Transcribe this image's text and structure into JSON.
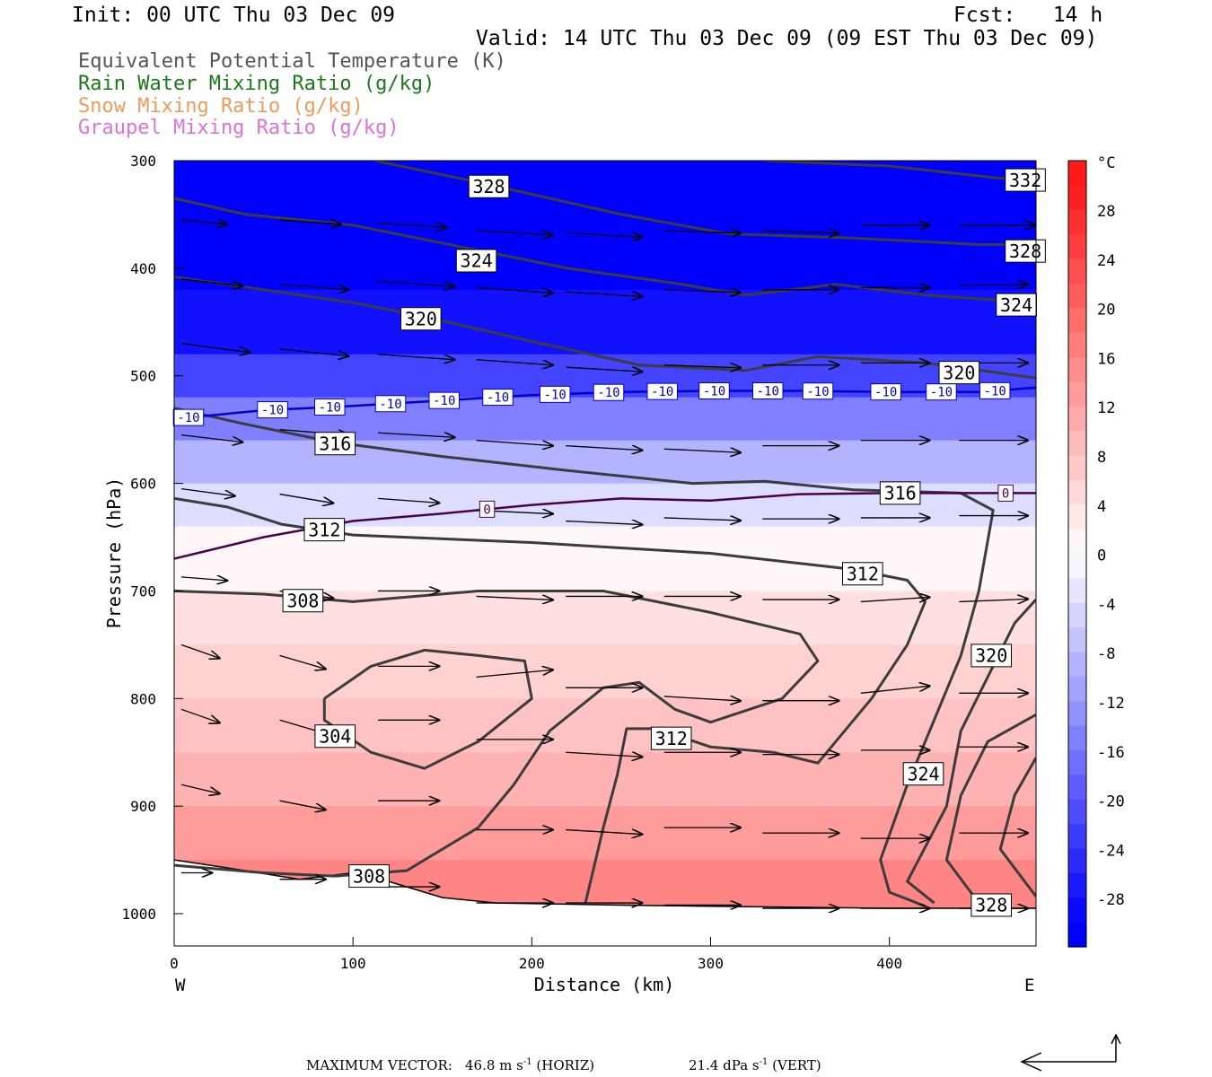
{
  "header": {
    "init": "Init: 00 UTC Thu 03 Dec 09",
    "fcst": "Fcst:   14 h",
    "valid": "Valid: 14 UTC Thu 03 Dec 09 (09 EST Thu 03 Dec 09)"
  },
  "fields": [
    {
      "label": "Equivalent Potential Temperature (K)",
      "color": "#555555"
    },
    {
      "label": "Rain Water Mixing Ratio (g/kg)",
      "color": "#1a7a1a"
    },
    {
      "label": "Snow Mixing Ratio (g/kg)",
      "color": "#f09a5a"
    },
    {
      "label": "Graupel Mixing Ratio (g/kg)",
      "color": "#e070e0"
    }
  ],
  "footer": {
    "max_vector_label": "MAXIMUM VECTOR:",
    "horiz": "46.8 m s",
    "horiz_sup": "-1",
    "horiz_tag": "(HORIZ)",
    "vert": "21.4 dPa s",
    "vert_sup": "-1",
    "vert_tag": "(VERT)"
  },
  "chart_data": {
    "type": "contour-cross-section",
    "xlabel": "Distance (km)",
    "ylabel": "Pressure (hPa)",
    "xlim": [
      0,
      482
    ],
    "ylim": [
      1030,
      300
    ],
    "x_ticks": [
      0,
      100,
      200,
      300,
      400
    ],
    "y_ticks": [
      300,
      400,
      500,
      600,
      700,
      800,
      900,
      1000
    ],
    "x_end_labels": {
      "left": "W",
      "right": "E"
    },
    "colorbar": {
      "unit": "°C",
      "tick_labels": [
        "28",
        "24",
        "20",
        "16",
        "12",
        "8",
        "4",
        "0",
        "-4",
        "-8",
        "-12",
        "-16",
        "-20",
        "-24",
        "-28"
      ],
      "warm_color": "#ff1a1a",
      "cold_color": "#0000ff"
    },
    "temperature_fill_rows": [
      {
        "p": 300,
        "t": -40
      },
      {
        "p": 360,
        "t": -34
      },
      {
        "p": 420,
        "t": -28
      },
      {
        "p": 480,
        "t": -22
      },
      {
        "p": 520,
        "t": -15
      },
      {
        "p": 560,
        "t": -9
      },
      {
        "p": 600,
        "t": -4
      },
      {
        "p": 640,
        "t": 1
      },
      {
        "p": 700,
        "t": 4
      },
      {
        "p": 750,
        "t": 6
      },
      {
        "p": 800,
        "t": 8
      },
      {
        "p": 850,
        "t": 10
      },
      {
        "p": 900,
        "t": 13
      },
      {
        "p": 950,
        "t": 16
      },
      {
        "p": 1000,
        "t": 18
      }
    ],
    "theta_e_contours": [
      {
        "label": "332",
        "points": [
          [
            330,
            300
          ],
          [
            400,
            305
          ],
          [
            482,
            320
          ]
        ],
        "label_at": [
          476,
          318
        ]
      },
      {
        "label": "328",
        "points": [
          [
            112,
            300
          ],
          [
            170,
            320
          ],
          [
            250,
            350
          ],
          [
            310,
            368
          ],
          [
            380,
            372
          ],
          [
            450,
            378
          ],
          [
            482,
            378
          ]
        ],
        "label_at": [
          176,
          324
        ],
        "label2_at": [
          476,
          384
        ]
      },
      {
        "label": "324",
        "points": [
          [
            0,
            335
          ],
          [
            40,
            350
          ],
          [
            100,
            360
          ],
          [
            160,
            380
          ],
          [
            220,
            400
          ],
          [
            280,
            414
          ],
          [
            320,
            425
          ],
          [
            370,
            415
          ],
          [
            420,
            425
          ],
          [
            482,
            432
          ]
        ],
        "label_at": [
          169,
          393
        ],
        "label2_at": [
          471,
          434
        ]
      },
      {
        "label": "320",
        "points": [
          [
            0,
            408
          ],
          [
            50,
            420
          ],
          [
            100,
            432
          ],
          [
            140,
            445
          ],
          [
            200,
            468
          ],
          [
            260,
            490
          ],
          [
            320,
            495
          ],
          [
            360,
            482
          ],
          [
            420,
            488
          ],
          [
            482,
            502
          ]
        ],
        "label_at": [
          138,
          447
        ],
        "label2_at": [
          439,
          497
        ]
      },
      {
        "label": "316",
        "points": [
          [
            0,
            530
          ],
          [
            40,
            545
          ],
          [
            90,
            562
          ],
          [
            150,
            575
          ],
          [
            220,
            588
          ],
          [
            290,
            600
          ],
          [
            330,
            598
          ],
          [
            380,
            606
          ],
          [
            440,
            609
          ],
          [
            458,
            625
          ],
          [
            450,
            700
          ],
          [
            440,
            760
          ],
          [
            425,
            820
          ],
          [
            410,
            880
          ],
          [
            395,
            950
          ],
          [
            400,
            980
          ],
          [
            420,
            993
          ]
        ],
        "label_at": [
          90,
          563
        ],
        "label2_at": [
          406,
          609
        ]
      },
      {
        "label": "312",
        "points": [
          [
            0,
            614
          ],
          [
            30,
            622
          ],
          [
            60,
            638
          ],
          [
            100,
            648
          ],
          [
            200,
            655
          ],
          [
            300,
            665
          ],
          [
            380,
            680
          ],
          [
            410,
            690
          ],
          [
            420,
            710
          ],
          [
            410,
            750
          ],
          [
            390,
            800
          ],
          [
            360,
            860
          ],
          [
            335,
            850
          ],
          [
            300,
            845
          ],
          [
            270,
            828
          ],
          [
            253,
            828
          ],
          [
            248,
            870
          ],
          [
            240,
            920
          ],
          [
            230,
            990
          ]
        ],
        "label_at": [
          84,
          643
        ],
        "label2_at": [
          385,
          684
        ],
        "label3_at": [
          278,
          837
        ]
      },
      {
        "label": "308",
        "points": [
          [
            0,
            700
          ],
          [
            50,
            703
          ],
          [
            100,
            710
          ],
          [
            170,
            700
          ],
          [
            240,
            700
          ],
          [
            300,
            720
          ],
          [
            350,
            740
          ],
          [
            360,
            765
          ],
          [
            340,
            800
          ],
          [
            300,
            822
          ],
          [
            280,
            810
          ],
          [
            260,
            785
          ],
          [
            240,
            790
          ],
          [
            210,
            830
          ],
          [
            190,
            880
          ],
          [
            170,
            920
          ],
          [
            130,
            960
          ],
          [
            90,
            965
          ],
          [
            50,
            962
          ],
          [
            0,
            955
          ]
        ],
        "label_at": [
          72,
          709
        ],
        "label2_at": [
          109,
          965
        ]
      },
      {
        "label": "304",
        "points": [
          [
            84,
            800
          ],
          [
            110,
            770
          ],
          [
            140,
            755
          ],
          [
            170,
            760
          ],
          [
            196,
            765
          ],
          [
            200,
            800
          ],
          [
            170,
            840
          ],
          [
            140,
            865
          ],
          [
            110,
            850
          ],
          [
            84,
            820
          ],
          [
            84,
            800
          ]
        ],
        "label_at": [
          90,
          835
        ]
      },
      {
        "label": "320",
        "points": [
          [
            482,
            708
          ],
          [
            470,
            730
          ],
          [
            455,
            780
          ],
          [
            440,
            830
          ],
          [
            432,
            900
          ],
          [
            410,
            970
          ],
          [
            425,
            990
          ]
        ],
        "label_at": [
          457,
          760
        ]
      },
      {
        "label": "324",
        "points": [
          [
            482,
            815
          ],
          [
            455,
            840
          ],
          [
            440,
            890
          ],
          [
            432,
            950
          ],
          [
            450,
            990
          ]
        ],
        "label_at": [
          419,
          870
        ]
      },
      {
        "label": "328",
        "points": [
          [
            482,
            855
          ],
          [
            470,
            890
          ],
          [
            462,
            940
          ],
          [
            482,
            984
          ]
        ],
        "label_at": [
          457,
          992
        ]
      }
    ],
    "isotherms": [
      {
        "label": "-10",
        "color": "#0000cc",
        "points": [
          [
            0,
            540
          ],
          [
            50,
            532
          ],
          [
            100,
            528
          ],
          [
            150,
            523
          ],
          [
            200,
            518
          ],
          [
            250,
            515
          ],
          [
            300,
            514
          ],
          [
            350,
            514
          ],
          [
            400,
            515
          ],
          [
            450,
            515
          ],
          [
            482,
            511
          ]
        ],
        "label_x": [
          8,
          55,
          87,
          121,
          151,
          181,
          213,
          243,
          273,
          302,
          332,
          360,
          398,
          429,
          459
        ]
      },
      {
        "label": "0",
        "color": "#4a004a",
        "points": [
          [
            0,
            670
          ],
          [
            50,
            650
          ],
          [
            100,
            635
          ],
          [
            150,
            628
          ],
          [
            200,
            620
          ],
          [
            250,
            614
          ],
          [
            300,
            616
          ],
          [
            350,
            610
          ],
          [
            400,
            609
          ],
          [
            482,
            609
          ]
        ],
        "label_x": [
          175,
          465
        ]
      }
    ],
    "surface_pressure": [
      [
        0,
        950
      ],
      [
        40,
        960
      ],
      [
        70,
        968
      ],
      [
        100,
        962
      ],
      [
        120,
        970
      ],
      [
        150,
        985
      ],
      [
        180,
        990
      ],
      [
        250,
        992
      ],
      [
        300,
        993
      ],
      [
        400,
        995
      ],
      [
        482,
        995
      ]
    ],
    "wind_vectors": [
      [
        0,
        355,
        30,
        5
      ],
      [
        55,
        355,
        40,
        5
      ],
      [
        110,
        358,
        45,
        5
      ],
      [
        165,
        365,
        50,
        5
      ],
      [
        215,
        367,
        50,
        5
      ],
      [
        270,
        365,
        50,
        3
      ],
      [
        325,
        365,
        50,
        3
      ],
      [
        380,
        360,
        45,
        0
      ],
      [
        435,
        360,
        50,
        0
      ],
      [
        0,
        410,
        40,
        8
      ],
      [
        55,
        415,
        45,
        6
      ],
      [
        110,
        412,
        50,
        6
      ],
      [
        165,
        418,
        50,
        6
      ],
      [
        215,
        422,
        50,
        5
      ],
      [
        270,
        420,
        50,
        3
      ],
      [
        325,
        420,
        50,
        0
      ],
      [
        380,
        418,
        45,
        0
      ],
      [
        435,
        415,
        45,
        0
      ],
      [
        0,
        470,
        45,
        10
      ],
      [
        55,
        475,
        45,
        8
      ],
      [
        110,
        480,
        50,
        6
      ],
      [
        165,
        485,
        50,
        6
      ],
      [
        215,
        492,
        50,
        5
      ],
      [
        270,
        490,
        50,
        3
      ],
      [
        325,
        490,
        50,
        0
      ],
      [
        380,
        488,
        45,
        0
      ],
      [
        435,
        488,
        45,
        0
      ],
      [
        0,
        555,
        40,
        8
      ],
      [
        55,
        550,
        45,
        6
      ],
      [
        110,
        553,
        50,
        5
      ],
      [
        165,
        560,
        50,
        6
      ],
      [
        215,
        565,
        50,
        5
      ],
      [
        270,
        568,
        50,
        4
      ],
      [
        325,
        565,
        50,
        0
      ],
      [
        380,
        560,
        45,
        0
      ],
      [
        435,
        560,
        45,
        0
      ],
      [
        0,
        605,
        35,
        8
      ],
      [
        55,
        610,
        35,
        10
      ],
      [
        110,
        614,
        40,
        5
      ],
      [
        165,
        625,
        50,
        4
      ],
      [
        215,
        635,
        50,
        4
      ],
      [
        270,
        632,
        50,
        3
      ],
      [
        325,
        633,
        50,
        0
      ],
      [
        380,
        632,
        45,
        0
      ],
      [
        435,
        630,
        45,
        0
      ],
      [
        0,
        687,
        30,
        4
      ],
      [
        55,
        700,
        35,
        8
      ],
      [
        110,
        700,
        40,
        0
      ],
      [
        165,
        705,
        50,
        4
      ],
      [
        215,
        705,
        50,
        0
      ],
      [
        270,
        705,
        50,
        0
      ],
      [
        325,
        708,
        50,
        0
      ],
      [
        380,
        710,
        45,
        -5
      ],
      [
        435,
        710,
        45,
        -3
      ],
      [
        0,
        750,
        25,
        15
      ],
      [
        55,
        760,
        30,
        15
      ],
      [
        110,
        770,
        40,
        0
      ],
      [
        165,
        780,
        50,
        -8
      ],
      [
        215,
        790,
        50,
        0
      ],
      [
        270,
        798,
        50,
        5
      ],
      [
        325,
        802,
        50,
        0
      ],
      [
        380,
        795,
        45,
        -8
      ],
      [
        435,
        795,
        45,
        0
      ],
      [
        0,
        810,
        25,
        15
      ],
      [
        55,
        820,
        30,
        15
      ],
      [
        110,
        820,
        40,
        0
      ],
      [
        165,
        838,
        50,
        0
      ],
      [
        215,
        850,
        50,
        5
      ],
      [
        270,
        850,
        50,
        0
      ],
      [
        325,
        852,
        50,
        0
      ],
      [
        380,
        848,
        45,
        0
      ],
      [
        435,
        845,
        45,
        0
      ],
      [
        0,
        880,
        25,
        10
      ],
      [
        55,
        895,
        30,
        10
      ],
      [
        110,
        895,
        40,
        0
      ],
      [
        165,
        922,
        50,
        0
      ],
      [
        215,
        922,
        50,
        5
      ],
      [
        270,
        920,
        50,
        0
      ],
      [
        325,
        925,
        50,
        0
      ],
      [
        380,
        930,
        45,
        0
      ],
      [
        435,
        925,
        45,
        0
      ],
      [
        0,
        962,
        20,
        0
      ],
      [
        55,
        968,
        30,
        0
      ],
      [
        110,
        975,
        40,
        0
      ],
      [
        165,
        990,
        50,
        0
      ],
      [
        215,
        990,
        50,
        0
      ],
      [
        270,
        992,
        50,
        0
      ],
      [
        325,
        995,
        50,
        0
      ],
      [
        380,
        995,
        45,
        0
      ],
      [
        435,
        995,
        45,
        0
      ]
    ]
  }
}
